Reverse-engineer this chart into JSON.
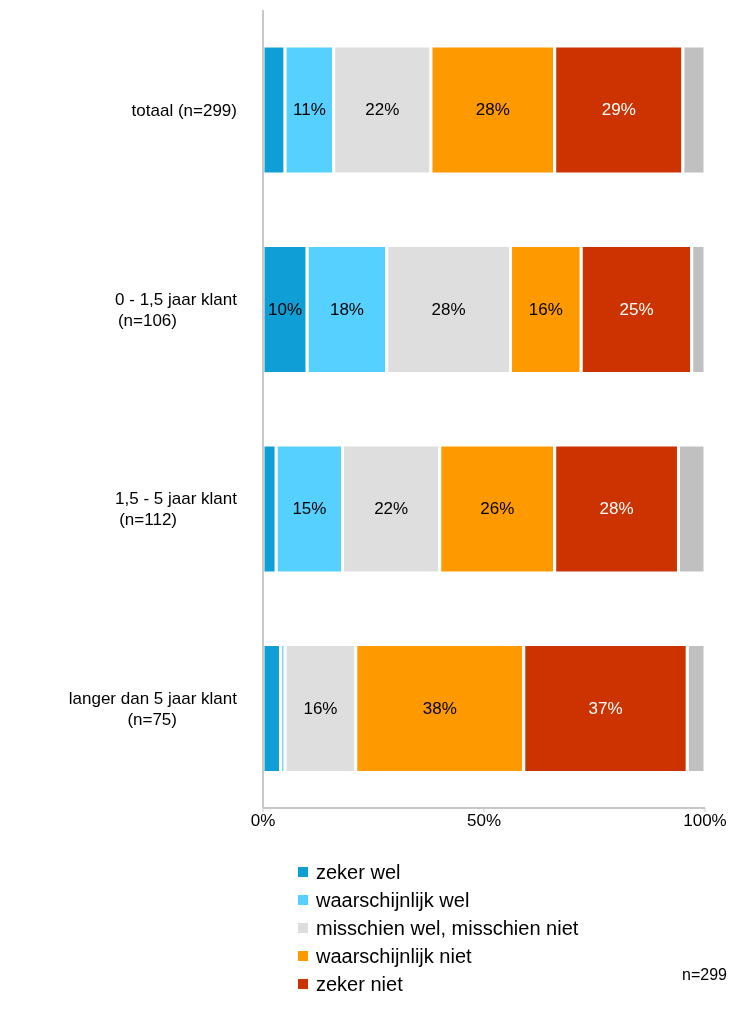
{
  "chart_data": {
    "type": "bar",
    "orientation": "horizontal",
    "stacked": true,
    "categories": [
      "totaal (n=299)",
      "0 - 1,5 jaar klant (n=106)",
      "1,5 - 5 jaar klant (n=112)",
      "langer dan 5 jaar klant (n=75)"
    ],
    "series": [
      {
        "name": "zeker wel",
        "color": "#0f9ed5",
        "values": [
          5,
          10,
          3,
          4
        ],
        "value_labels": [
          null,
          "10%",
          null,
          null
        ]
      },
      {
        "name": "waarschijnlijk wel",
        "color": "#55d0ff",
        "values": [
          11,
          18,
          15,
          1
        ],
        "value_labels": [
          "11%",
          "18%",
          "15%",
          null
        ]
      },
      {
        "name": "misschien wel, misschien niet",
        "color": "#dedede",
        "values": [
          22,
          28,
          22,
          16
        ],
        "value_labels": [
          "22%",
          "28%",
          "22%",
          "16%"
        ]
      },
      {
        "name": "waarschijnlijk niet",
        "color": "#ff9900",
        "values": [
          28,
          16,
          26,
          38
        ],
        "value_labels": [
          "28%",
          "16%",
          "26%",
          "38%"
        ]
      },
      {
        "name": "zeker niet",
        "color": "#cc3300",
        "values": [
          29,
          25,
          28,
          37
        ],
        "value_labels": [
          "29%",
          "25%",
          "28%",
          "37%"
        ]
      },
      {
        "color": "#c0c0c0",
        "values": [
          5,
          3,
          6,
          4
        ],
        "value_labels": [
          null,
          null,
          null,
          null
        ]
      }
    ],
    "xlim": [
      0,
      100
    ],
    "xticks": [
      {
        "value": 0,
        "label": "0%"
      },
      {
        "value": 50,
        "label": "50%"
      },
      {
        "value": 100,
        "label": "100%"
      }
    ],
    "legend": "bottom",
    "annotations": [
      "n=299"
    ]
  }
}
